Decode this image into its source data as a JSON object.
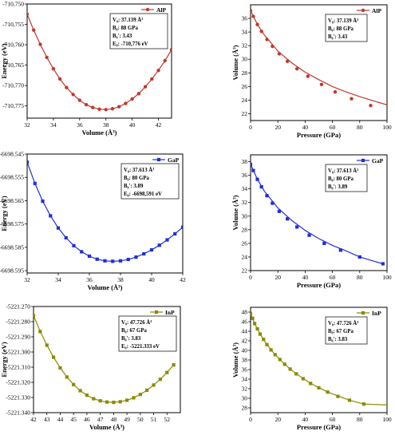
{
  "chart_data": [
    {
      "type": "line",
      "legend": "AlP",
      "color": "#c0392b",
      "marker": "circle",
      "xlabel": "Volume (Å³)",
      "ylabel": "Energy (eV)",
      "xlim": [
        32,
        43
      ],
      "ylim": [
        -710.778,
        -710.75
      ],
      "xticks": [
        32,
        34,
        36,
        38,
        40,
        42
      ],
      "xtick_labels": [
        "32",
        "34",
        "36",
        "38",
        "40",
        "42"
      ],
      "yticks": [
        -710.75,
        -710.755,
        -710.76,
        -710.765,
        -710.77,
        -710.775
      ],
      "ytick_labels": [
        "-710,750",
        "-710,755",
        "-710,760",
        "-710,765",
        "-710,770",
        "-710,775"
      ],
      "box_lines": [
        "V₀:  37.139 Å³",
        "B₀:  88 GPa",
        "B₀':  3.43",
        "E₀:  -710,776 eV"
      ],
      "x": [
        32.0,
        32.5,
        33.0,
        33.5,
        34.0,
        34.5,
        35.0,
        35.5,
        36.0,
        36.5,
        37.0,
        37.5,
        38.0,
        38.5,
        39.0,
        39.5,
        40.0,
        40.5,
        41.0,
        41.5,
        42.0,
        42.5,
        43.0
      ],
      "y": [
        -710.7525,
        -710.7564,
        -710.7599,
        -710.7631,
        -710.7659,
        -710.7684,
        -710.7705,
        -710.7722,
        -710.7736,
        -710.7747,
        -710.7754,
        -710.7758,
        -710.7759,
        -710.7757,
        -710.7752,
        -710.7744,
        -710.7733,
        -710.772,
        -710.7703,
        -710.7684,
        -710.7663,
        -710.7639,
        -710.7612
      ]
    },
    {
      "type": "line",
      "legend": "AlP",
      "color": "#c0392b",
      "marker": "circle",
      "xlabel": "Pressure (GPa)",
      "ylabel": "Volume (Å³)",
      "xlim": [
        0,
        100
      ],
      "ylim": [
        21,
        38
      ],
      "xticks": [
        0,
        20,
        40,
        60,
        80,
        100
      ],
      "xtick_labels": [
        "0",
        "20",
        "40",
        "60",
        "80",
        "100"
      ],
      "yticks": [
        22,
        24,
        26,
        28,
        30,
        32,
        34,
        36
      ],
      "ytick_labels": [
        "22",
        "24",
        "26",
        "28",
        "30",
        "32",
        "34",
        "36"
      ],
      "box_lines": [
        "V₀:  37.139 Å³",
        "B₀:  88 GPa",
        "B₀':  3.43"
      ],
      "x": [
        0,
        2,
        5,
        8,
        12,
        16,
        21,
        27,
        34,
        42,
        52,
        62,
        74,
        88
      ],
      "y": [
        37.14,
        36.3,
        35.1,
        34.1,
        32.9,
        31.9,
        30.8,
        29.7,
        28.6,
        27.5,
        26.3,
        25.2,
        24.2,
        23.2
      ],
      "line_x": [
        0,
        5,
        10,
        20,
        30,
        40,
        50,
        60,
        70,
        80,
        90,
        100
      ],
      "line_y": [
        37.14,
        35.1,
        33.6,
        31.2,
        29.5,
        28.1,
        27.0,
        26.0,
        25.2,
        24.5,
        23.9,
        23.3
      ]
    },
    {
      "type": "line",
      "legend": "GaP",
      "color": "#1f2fd6",
      "marker": "square",
      "xlabel": "Volume (Å³)",
      "ylabel": "Energy (eV)",
      "xlim": [
        32,
        42
      ],
      "ylim": [
        -6698.596,
        -6698.545
      ],
      "xticks": [
        32,
        34,
        36,
        38,
        40,
        42
      ],
      "xtick_labels": [
        "32",
        "34",
        "36",
        "38",
        "40",
        "42"
      ],
      "yticks": [
        -6698.545,
        -6698.555,
        -6698.565,
        -6698.575,
        -6698.585,
        -6698.595
      ],
      "ytick_labels": [
        "-6698.545",
        "-6698.555",
        "-6698.565",
        "-6698.575",
        "-6698.585",
        "-6698.595"
      ],
      "box_lines": [
        "V₀:  37.613 Å³",
        "B₀:  80 GPa",
        "B₀':  3.89",
        "E₀:  -6698,591 eV"
      ],
      "x": [
        32.0,
        32.5,
        33.0,
        33.5,
        34.0,
        34.5,
        35.0,
        35.5,
        36.0,
        36.5,
        37.0,
        37.5,
        38.0,
        38.5,
        39.0,
        39.5,
        40.0,
        40.5,
        41.0,
        41.5,
        42.0
      ],
      "y": [
        -6698.5485,
        -6698.5576,
        -6698.5652,
        -6698.5715,
        -6698.5767,
        -6698.5809,
        -6698.5843,
        -6698.5869,
        -6698.5888,
        -6698.5901,
        -6698.5908,
        -6698.591,
        -6698.5908,
        -6698.5902,
        -6698.5892,
        -6698.5878,
        -6698.5861,
        -6698.5841,
        -6698.5818,
        -6698.5792,
        -6698.5764
      ]
    },
    {
      "type": "line",
      "legend": "GaP",
      "color": "#1f2fd6",
      "marker": "square",
      "xlabel": "Pressure (GPa)",
      "ylabel": "Volume (Å³)",
      "xlim": [
        0,
        100
      ],
      "ylim": [
        22,
        39
      ],
      "xticks": [
        0,
        20,
        40,
        60,
        80,
        100
      ],
      "xtick_labels": [
        "0",
        "20",
        "40",
        "60",
        "80",
        "100"
      ],
      "yticks": [
        22,
        24,
        26,
        28,
        30,
        32,
        34,
        36,
        38
      ],
      "ytick_labels": [
        "22",
        "24",
        "26",
        "28",
        "30",
        "32",
        "34",
        "36",
        "38"
      ],
      "box_lines": [
        "V₀:  37.613 Å³",
        "B₀:  80 GPa",
        "B₀':  3.89"
      ],
      "x": [
        0,
        2,
        5,
        8,
        12,
        16,
        21,
        27,
        34,
        43,
        54,
        66,
        80,
        97
      ],
      "y": [
        37.6,
        36.7,
        35.4,
        34.3,
        33.0,
        31.9,
        30.7,
        29.6,
        28.4,
        27.2,
        26.0,
        25.0,
        24.0,
        23.0
      ],
      "line_x": [
        0,
        5,
        10,
        20,
        30,
        40,
        50,
        60,
        70,
        80,
        90,
        97
      ],
      "line_y": [
        37.6,
        35.4,
        33.7,
        31.2,
        29.4,
        27.9,
        26.7,
        25.7,
        24.9,
        24.0,
        23.4,
        23.0
      ]
    },
    {
      "type": "line",
      "legend": "InP",
      "color": "#8a8a00",
      "marker": "square",
      "xlabel": "Volume (Å³)",
      "ylabel": "Energy (eV)",
      "xlim": [
        42,
        53
      ],
      "ylim": [
        -5221.34,
        -5221.27
      ],
      "xticks": [
        42,
        43,
        44,
        45,
        46,
        47,
        48,
        49,
        50,
        51,
        52
      ],
      "xtick_labels": [
        "42",
        "43",
        "44",
        "45",
        "46",
        "47",
        "48",
        "49",
        "50",
        "51",
        "52"
      ],
      "yticks": [
        -5221.27,
        -5221.28,
        -5221.29,
        -5221.3,
        -5221.31,
        -5221.32,
        -5221.33,
        -5221.34
      ],
      "ytick_labels": [
        "-5221.270",
        "-5221.280",
        "-5221.290",
        "-5221.300",
        "-5221.310",
        "-5221.320",
        "-5221.330",
        "-5221.340"
      ],
      "box_lines": [
        "V₀:  47.726 Å³",
        "B₀:  67 GPa",
        "B₀':  3.83",
        "E₀:  -5221.333 eV"
      ],
      "x": [
        42.0,
        42.5,
        43.0,
        43.5,
        44.0,
        44.5,
        45.0,
        45.5,
        46.0,
        46.5,
        47.0,
        47.5,
        48.0,
        48.5,
        49.0,
        49.5,
        50.0,
        50.5,
        51.0,
        51.5,
        52.0,
        52.5
      ],
      "y": [
        -5221.276,
        -5221.2865,
        -5221.2955,
        -5221.3035,
        -5221.3105,
        -5221.3165,
        -5221.3215,
        -5221.3255,
        -5221.3285,
        -5221.3308,
        -5221.3322,
        -5221.333,
        -5221.3332,
        -5221.3328,
        -5221.3318,
        -5221.3302,
        -5221.328,
        -5221.3252,
        -5221.3218,
        -5221.318,
        -5221.3135,
        -5221.3085
      ]
    },
    {
      "type": "line",
      "legend": "InP",
      "color": "#8a8a00",
      "marker": "square",
      "xlabel": "Pressure (GPa)",
      "ylabel": "Volume (Å³)",
      "xlim": [
        0,
        100
      ],
      "ylim": [
        27,
        49
      ],
      "xticks": [
        0,
        20,
        40,
        60,
        80,
        100
      ],
      "xtick_labels": [
        "0",
        "20",
        "40",
        "60",
        "80",
        "100"
      ],
      "yticks": [
        28,
        30,
        32,
        34,
        36,
        38,
        40,
        42,
        44,
        46,
        48
      ],
      "ytick_labels": [
        "28",
        "30",
        "32",
        "34",
        "36",
        "38",
        "40",
        "42",
        "44",
        "46",
        "48"
      ],
      "box_lines": [
        "V₀:  47.726 Å³",
        "B₀:  67 GPa",
        "B₀':  3.83"
      ],
      "x": [
        0,
        1.5,
        3,
        5,
        7,
        9.5,
        12,
        15,
        18,
        21.5,
        25,
        29,
        33.5,
        38.5,
        44,
        50,
        56.5,
        64,
        72.5,
        83
      ],
      "y": [
        47.7,
        46.7,
        45.6,
        44.5,
        43.4,
        42.3,
        41.2,
        40.1,
        39.1,
        38.1,
        37.1,
        36.1,
        35.1,
        34.1,
        33.1,
        32.2,
        31.3,
        30.4,
        29.6,
        28.8
      ],
      "line_x": [
        0,
        3,
        7,
        12,
        18,
        25,
        33.5,
        44,
        56.5,
        72.5,
        83,
        100
      ],
      "line_y": [
        47.7,
        45.6,
        43.4,
        41.2,
        39.1,
        37.1,
        35.1,
        33.1,
        31.3,
        29.6,
        28.8,
        28.6
      ]
    }
  ]
}
